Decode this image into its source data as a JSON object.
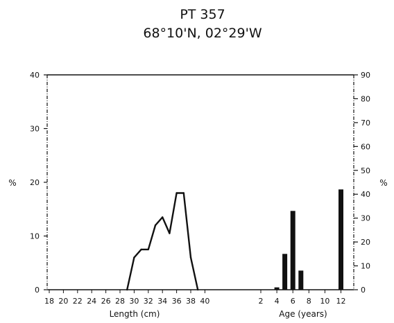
{
  "title": "PT 357",
  "subtitle": "68°10'N, 02°29'W",
  "chart_data": [
    {
      "type": "line",
      "x": [
        29,
        30,
        31,
        32,
        33,
        34,
        35,
        36,
        37,
        38,
        39
      ],
      "y": [
        0,
        6,
        7.5,
        7.5,
        12,
        13.5,
        10.5,
        18,
        18,
        6,
        0
      ],
      "xlabel": "Length (cm)",
      "ylabel": "%",
      "xlim": [
        17.5,
        39.5
      ],
      "ylim": [
        0,
        40
      ],
      "x_ticks": [
        "18",
        "20",
        "22",
        "24",
        "26",
        "28",
        "30",
        "32",
        "34",
        "36",
        "38",
        "40"
      ],
      "y_ticks": [
        "0",
        "10",
        "20",
        "30",
        "40"
      ]
    },
    {
      "type": "bar",
      "categories": [
        "4",
        "5",
        "6",
        "7",
        "12"
      ],
      "values": [
        1,
        15,
        33,
        8,
        42
      ],
      "xlabel": "Age (years)",
      "ylabel": "%",
      "ylim": [
        0,
        90
      ],
      "x_ticks": [
        "2",
        "4",
        "6",
        "8",
        "10",
        "12"
      ],
      "y_ticks": [
        "0",
        "10",
        "20",
        "30",
        "40",
        "50",
        "60",
        "70",
        "80",
        "90"
      ]
    }
  ]
}
